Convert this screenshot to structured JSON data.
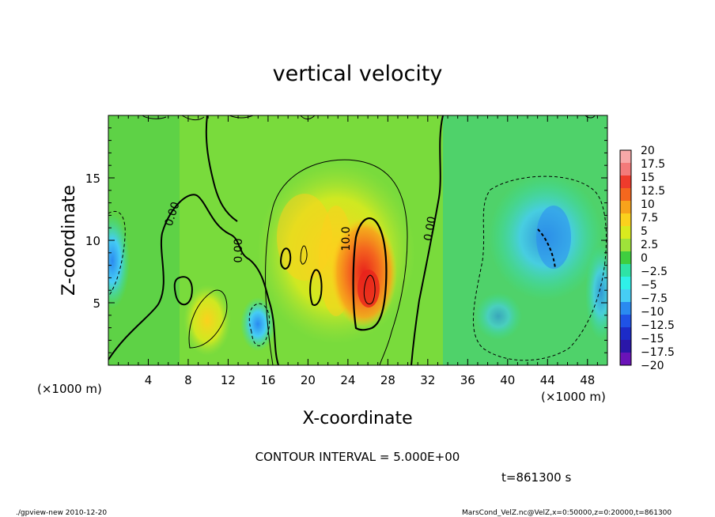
{
  "chart_data": {
    "type": "heatmap",
    "title": "vertical velocity",
    "xlabel": "X-coordinate",
    "ylabel": "Z-coordinate",
    "x_unit_left": "(×1000 m)",
    "x_unit_right": "(×1000 m)",
    "x_ticks": [
      "4",
      "8",
      "12",
      "16",
      "20",
      "24",
      "28",
      "32",
      "36",
      "40",
      "44",
      "48"
    ],
    "y_ticks": [
      "5",
      "10",
      "15"
    ],
    "xlim": [
      0,
      50
    ],
    "ylim": [
      0,
      20
    ],
    "colorbar": {
      "labels": [
        "20",
        "17.5",
        "15",
        "12.5",
        "10",
        "7.5",
        "5",
        "2.5",
        "0",
        "−2.5",
        "−5",
        "−7.5",
        "−10",
        "−12.5",
        "−15",
        "−17.5",
        "−20"
      ],
      "colors": [
        "#f7a8a8",
        "#f37a7a",
        "#ef3b2c",
        "#f4671e",
        "#f8a31b",
        "#fbd11d",
        "#d9ea1e",
        "#9fe23a",
        "#3fce3f",
        "#2ee3a6",
        "#2ff0e8",
        "#46cdf5",
        "#2a8af0",
        "#1f52e6",
        "#1c2bc8",
        "#2a16a8",
        "#6a13b8"
      ]
    },
    "contour_labels": [
      "0.00",
      "0.00",
      "10.0",
      "0.00"
    ],
    "contour_interval_text": "CONTOUR INTERVAL = 5.000E+00",
    "time_text": "t=861300 s"
  },
  "footer": {
    "left": "./gpview-new   2010-12-20",
    "right": "MarsCond_VelZ.nc@VelZ,x=0:50000,z=0:20000,t=861300"
  }
}
